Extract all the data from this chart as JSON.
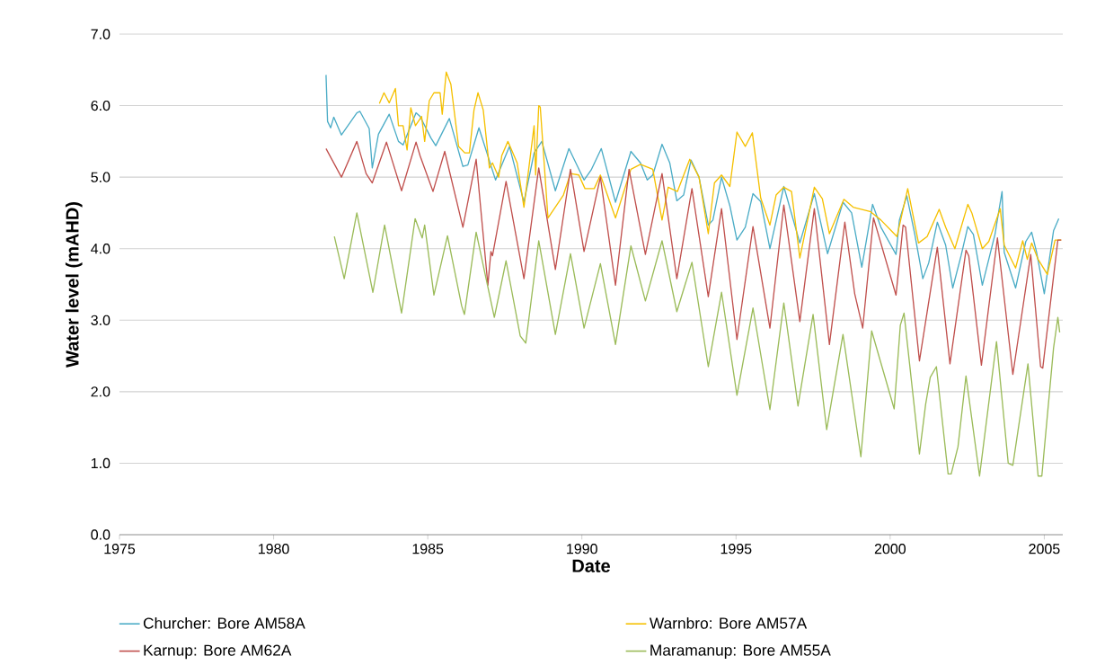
{
  "chart_data": {
    "type": "line",
    "xlabel": "Date",
    "ylabel": "Water level (mAHD)",
    "xlim": [
      1975,
      2005.6
    ],
    "ylim": [
      0,
      7
    ],
    "xticks": [
      1975,
      1980,
      1985,
      1990,
      1995,
      2000,
      2005
    ],
    "yticks": [
      {
        "value": 0,
        "label": "0.0"
      },
      {
        "value": 1,
        "label": "1.0"
      },
      {
        "value": 2,
        "label": "2.0"
      },
      {
        "value": 3,
        "label": "3.0"
      },
      {
        "value": 4,
        "label": "4.0"
      },
      {
        "value": 5,
        "label": "5.0"
      },
      {
        "value": 6,
        "label": "6.0"
      },
      {
        "value": 7,
        "label": "7.0"
      }
    ],
    "grid": "y",
    "legend": "bottom",
    "marker": "none",
    "line_style": "solid",
    "series": [
      {
        "name": "Churcher: Bore AM58A",
        "color": "#4bacc6",
        "x": [
          1981.7,
          1981.75,
          1981.85,
          1981.95,
          1982.2,
          1982.7,
          1982.8,
          1983.1,
          1983.2,
          1983.4,
          1983.75,
          1984.05,
          1984.2,
          1984.62,
          1984.75,
          1985.1,
          1985.26,
          1985.7,
          1986.14,
          1986.3,
          1986.66,
          1987.2,
          1987.65,
          1988.12,
          1988.45,
          1988.7,
          1989.14,
          1989.58,
          1990.07,
          1990.3,
          1990.63,
          1991.09,
          1991.59,
          1991.9,
          1992.12,
          1992.3,
          1992.6,
          1992.85,
          1993.08,
          1993.3,
          1993.54,
          1993.8,
          1994.1,
          1994.25,
          1994.53,
          1994.8,
          1995.03,
          1995.3,
          1995.55,
          1995.8,
          1996.1,
          1996.55,
          1997.07,
          1997.54,
          1997.97,
          1998.47,
          1998.75,
          1999.08,
          1999.43,
          1999.7,
          2000.19,
          2000.3,
          2000.54,
          2000.8,
          2001.06,
          2001.25,
          2001.53,
          2001.8,
          2002.03,
          2002.3,
          2002.52,
          2002.7,
          2002.99,
          2003.4,
          2003.63,
          2003.7,
          2004.07,
          2004.4,
          2004.59,
          2004.75,
          2005.0,
          2005.3,
          2005.47
        ],
        "values": [
          6.43,
          5.78,
          5.69,
          5.84,
          5.59,
          5.9,
          5.92,
          5.68,
          5.13,
          5.6,
          5.88,
          5.5,
          5.45,
          5.9,
          5.85,
          5.55,
          5.44,
          5.82,
          5.15,
          5.17,
          5.69,
          4.96,
          5.43,
          4.65,
          5.34,
          5.5,
          4.81,
          5.4,
          4.96,
          5.1,
          5.4,
          4.65,
          5.36,
          5.2,
          4.96,
          5.03,
          5.46,
          5.2,
          4.67,
          4.75,
          5.24,
          5.0,
          4.33,
          4.4,
          5.0,
          4.6,
          4.12,
          4.3,
          4.77,
          4.66,
          4.0,
          4.87,
          4.08,
          4.77,
          3.93,
          4.65,
          4.5,
          3.74,
          4.62,
          4.3,
          3.92,
          4.4,
          4.74,
          4.2,
          3.58,
          3.8,
          4.37,
          4.05,
          3.45,
          3.9,
          4.31,
          4.2,
          3.49,
          4.2,
          4.8,
          3.95,
          3.45,
          4.1,
          4.23,
          3.95,
          3.37,
          4.25,
          4.42
        ]
      },
      {
        "name": "Warnbro: Bore AM57A",
        "color": "#f5c000",
        "x": [
          1983.43,
          1983.58,
          1983.75,
          1983.95,
          1984.05,
          1984.2,
          1984.33,
          1984.45,
          1984.6,
          1984.8,
          1984.9,
          1985.05,
          1985.2,
          1985.4,
          1985.47,
          1985.6,
          1985.75,
          1986.0,
          1986.2,
          1986.35,
          1986.5,
          1986.63,
          1986.8,
          1987.0,
          1987.1,
          1987.3,
          1987.4,
          1987.6,
          1987.9,
          1988.12,
          1988.45,
          1988.5,
          1988.6,
          1988.65,
          1988.9,
          1989.4,
          1989.63,
          1989.9,
          1990.1,
          1990.4,
          1990.6,
          1991.09,
          1991.59,
          1991.9,
          1992.3,
          1992.6,
          1992.8,
          1993.1,
          1993.5,
          1993.8,
          1994.1,
          1994.3,
          1994.53,
          1994.8,
          1995.03,
          1995.3,
          1995.53,
          1995.8,
          1996.1,
          1996.3,
          1996.55,
          1996.8,
          1997.07,
          1997.54,
          1997.8,
          1998.03,
          1998.5,
          1998.8,
          1999.35,
          1999.7,
          2000.22,
          2000.57,
          2000.92,
          2001.2,
          2001.59,
          2001.8,
          2002.1,
          2002.52,
          2002.65,
          2002.99,
          2003.2,
          2003.57,
          2003.7,
          2004.07,
          2004.3,
          2004.45,
          2004.59,
          2004.8,
          2005.1,
          2005.35,
          2005.55
        ],
        "values": [
          6.03,
          6.18,
          6.04,
          6.24,
          5.72,
          5.72,
          5.38,
          5.97,
          5.72,
          5.85,
          5.5,
          6.07,
          6.18,
          6.18,
          5.88,
          6.47,
          6.3,
          5.43,
          5.34,
          5.34,
          5.94,
          6.18,
          5.94,
          5.13,
          5.2,
          5.0,
          5.3,
          5.5,
          5.2,
          4.58,
          5.72,
          5.03,
          6.0,
          5.98,
          4.43,
          4.75,
          5.05,
          5.03,
          4.84,
          4.84,
          5.03,
          4.43,
          5.11,
          5.18,
          5.11,
          4.4,
          4.86,
          4.8,
          5.25,
          5.0,
          4.21,
          4.92,
          5.03,
          4.87,
          5.63,
          5.43,
          5.62,
          4.71,
          4.33,
          4.75,
          4.86,
          4.8,
          3.87,
          4.86,
          4.7,
          4.21,
          4.69,
          4.58,
          4.52,
          4.4,
          4.17,
          4.84,
          4.08,
          4.17,
          4.55,
          4.3,
          4.0,
          4.62,
          4.5,
          4.0,
          4.1,
          4.56,
          4.05,
          3.73,
          4.11,
          3.85,
          4.08,
          3.85,
          3.64,
          4.12,
          4.12
        ]
      },
      {
        "name": "Karnup: Bore AM62A",
        "color": "#c0504d",
        "x": [
          1981.7,
          1982.2,
          1982.7,
          1983.0,
          1983.2,
          1983.66,
          1984.15,
          1984.62,
          1984.75,
          1985.17,
          1985.55,
          1986.14,
          1986.57,
          1986.95,
          1987.05,
          1987.1,
          1987.54,
          1988.12,
          1988.6,
          1989.14,
          1989.63,
          1990.07,
          1990.6,
          1991.09,
          1991.53,
          1992.06,
          1992.6,
          1993.08,
          1993.57,
          1994.1,
          1994.53,
          1995.03,
          1995.55,
          1996.1,
          1996.55,
          1997.07,
          1997.54,
          1998.03,
          1998.53,
          1998.85,
          1999.11,
          1999.46,
          2000.19,
          2000.42,
          2000.5,
          2000.95,
          2001.53,
          2001.94,
          2002.46,
          2002.55,
          2002.96,
          2003.48,
          2003.98,
          2004.56,
          2004.88,
          2004.95,
          2005.44,
          2005.55
        ],
        "values": [
          5.4,
          5.0,
          5.5,
          5.05,
          4.92,
          5.49,
          4.81,
          5.49,
          5.3,
          4.8,
          5.36,
          4.3,
          5.25,
          3.49,
          3.96,
          3.9,
          4.94,
          3.58,
          5.13,
          3.71,
          5.11,
          3.96,
          5.0,
          3.49,
          5.11,
          3.92,
          5.05,
          3.58,
          4.84,
          3.33,
          4.56,
          2.73,
          4.31,
          2.89,
          4.61,
          2.98,
          4.56,
          2.66,
          4.37,
          3.37,
          2.89,
          4.43,
          3.35,
          4.33,
          4.3,
          2.43,
          4.02,
          2.39,
          3.98,
          3.9,
          2.37,
          4.15,
          2.24,
          3.92,
          2.35,
          2.33,
          4.12,
          4.12
        ]
      },
      {
        "name": "Maramanup: Bore AM55A",
        "color": "#9bbb59",
        "x": [
          1981.97,
          1982.29,
          1982.7,
          1983.22,
          1983.6,
          1984.15,
          1984.59,
          1984.82,
          1984.9,
          1985.2,
          1985.64,
          1986.1,
          1986.19,
          1986.57,
          1987.16,
          1987.54,
          1988.0,
          1988.18,
          1988.6,
          1989.14,
          1989.63,
          1990.07,
          1990.6,
          1991.09,
          1991.59,
          1992.06,
          1992.6,
          1993.08,
          1993.57,
          1994.1,
          1994.53,
          1995.03,
          1995.55,
          1996.1,
          1996.55,
          1997.01,
          1997.5,
          1997.94,
          1998.47,
          1999.05,
          1999.4,
          2000.13,
          2000.33,
          2000.45,
          2000.95,
          2001.15,
          2001.3,
          2001.5,
          2001.88,
          2001.98,
          2002.2,
          2002.46,
          2002.9,
          2003.45,
          2003.83,
          2003.98,
          2004.47,
          2004.8,
          2004.92,
          2005.3,
          2005.44,
          2005.5
        ],
        "values": [
          4.17,
          3.58,
          4.5,
          3.39,
          4.33,
          3.1,
          4.42,
          4.15,
          4.33,
          3.35,
          4.18,
          3.2,
          3.08,
          4.23,
          3.04,
          3.83,
          2.78,
          2.68,
          4.11,
          2.8,
          3.93,
          2.89,
          3.79,
          2.66,
          4.04,
          3.27,
          4.11,
          3.12,
          3.81,
          2.35,
          3.39,
          1.95,
          3.17,
          1.75,
          3.24,
          1.8,
          3.08,
          1.47,
          2.8,
          1.09,
          2.85,
          1.76,
          2.93,
          3.1,
          1.13,
          1.82,
          2.2,
          2.35,
          0.85,
          0.85,
          1.23,
          2.22,
          0.82,
          2.7,
          1.0,
          0.97,
          2.39,
          0.82,
          0.82,
          2.61,
          3.04,
          2.83
        ]
      }
    ]
  }
}
